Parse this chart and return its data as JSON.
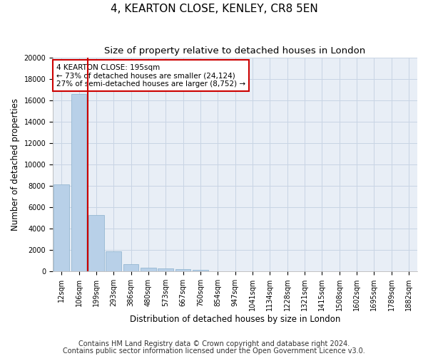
{
  "title": "4, KEARTON CLOSE, KENLEY, CR8 5EN",
  "subtitle": "Size of property relative to detached houses in London",
  "xlabel": "Distribution of detached houses by size in London",
  "ylabel": "Number of detached properties",
  "categories": [
    "12sqm",
    "106sqm",
    "199sqm",
    "293sqm",
    "386sqm",
    "480sqm",
    "573sqm",
    "667sqm",
    "760sqm",
    "854sqm",
    "947sqm",
    "1041sqm",
    "1134sqm",
    "1228sqm",
    "1321sqm",
    "1415sqm",
    "1508sqm",
    "1602sqm",
    "1695sqm",
    "1789sqm",
    "1882sqm"
  ],
  "values": [
    8100,
    16600,
    5300,
    1850,
    700,
    350,
    270,
    200,
    170,
    0,
    0,
    0,
    0,
    0,
    0,
    0,
    0,
    0,
    0,
    0,
    0
  ],
  "bar_color": "#b8d0e8",
  "bar_edge_color": "#8ab0cc",
  "grid_color": "#c8d4e4",
  "vline_color": "#cc0000",
  "vline_pos": 1.5,
  "annotation_text": "4 KEARTON CLOSE: 195sqm\n← 73% of detached houses are smaller (24,124)\n27% of semi-detached houses are larger (8,752) →",
  "annotation_box_color": "#cc0000",
  "ylim": [
    0,
    20000
  ],
  "yticks": [
    0,
    2000,
    4000,
    6000,
    8000,
    10000,
    12000,
    14000,
    16000,
    18000,
    20000
  ],
  "footnote1": "Contains HM Land Registry data © Crown copyright and database right 2024.",
  "footnote2": "Contains public sector information licensed under the Open Government Licence v3.0.",
  "title_fontsize": 11,
  "subtitle_fontsize": 9.5,
  "axis_label_fontsize": 8.5,
  "tick_fontsize": 7,
  "annotation_fontsize": 7.5,
  "footnote_fontsize": 7,
  "background_color": "#ffffff",
  "plot_bg_color": "#e8eef6"
}
